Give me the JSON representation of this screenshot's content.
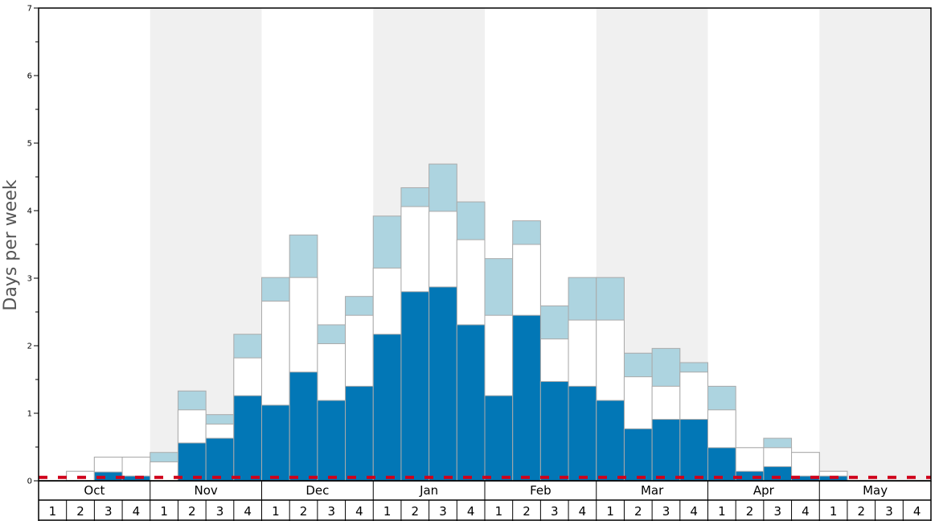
{
  "chart_data": {
    "type": "bar",
    "ylabel": "Days per week",
    "xlabel": "",
    "ylim": [
      0,
      7
    ],
    "yticks": [
      "0",
      "1",
      "2",
      "3",
      "4",
      "5",
      "6",
      "7"
    ],
    "months": [
      "Oct",
      "Nov",
      "Dec",
      "Jan",
      "Feb",
      "Mar",
      "Apr",
      "May"
    ],
    "weeks": [
      "1",
      "2",
      "3",
      "4"
    ],
    "categories": [
      "Oct 1",
      "Oct 2",
      "Oct 3",
      "Oct 4",
      "Nov 1",
      "Nov 2",
      "Nov 3",
      "Nov 4",
      "Dec 1",
      "Dec 2",
      "Dec 3",
      "Dec 4",
      "Jan 1",
      "Jan 2",
      "Jan 3",
      "Jan 4",
      "Feb 1",
      "Feb 2",
      "Feb 3",
      "Feb 4",
      "Mar 1",
      "Mar 2",
      "Mar 3",
      "Mar 4",
      "Apr 1",
      "Apr 2",
      "Apr 3",
      "Apr 4",
      "May 1",
      "May 2",
      "May 3",
      "May 4"
    ],
    "series": [
      {
        "values": [
          0,
          0,
          0.13,
          0.07,
          0,
          0.56,
          0.63,
          1.26,
          1.12,
          1.61,
          1.19,
          1.4,
          2.17,
          2.8,
          2.87,
          2.31,
          1.26,
          2.45,
          1.47,
          1.4,
          1.19,
          0.77,
          0.91,
          0.91,
          0.49,
          0.14,
          0.21,
          0.07,
          0.07,
          0,
          0,
          0
        ]
      },
      {
        "values": [
          0,
          0.14,
          0.35,
          0.35,
          0.28,
          1.05,
          0.84,
          1.82,
          2.66,
          3.01,
          2.03,
          2.45,
          3.15,
          4.06,
          3.99,
          3.57,
          2.45,
          3.5,
          2.1,
          2.38,
          2.38,
          1.54,
          1.4,
          1.61,
          1.05,
          0.49,
          0.49,
          0.42,
          0.14,
          0,
          0,
          0
        ]
      },
      {
        "values": [
          0,
          0.14,
          0.35,
          0.35,
          0.42,
          1.33,
          0.98,
          2.17,
          3.01,
          3.64,
          2.31,
          2.73,
          3.92,
          4.34,
          4.69,
          4.13,
          3.29,
          3.85,
          2.59,
          3.01,
          3.01,
          1.89,
          1.96,
          1.75,
          1.4,
          0.49,
          0.63,
          0.42,
          0.14,
          0,
          0,
          0
        ]
      }
    ],
    "reference_line": 0.05,
    "colors": {
      "dark_bar": "#0277b6",
      "mid_bar": "#ffffff",
      "light_bar": "#add4e0",
      "bar_outline": "#aaaaaa",
      "shade_band": "#f0f0f0",
      "reference_line": "#d0021b"
    },
    "grid": false,
    "legend": "none"
  }
}
